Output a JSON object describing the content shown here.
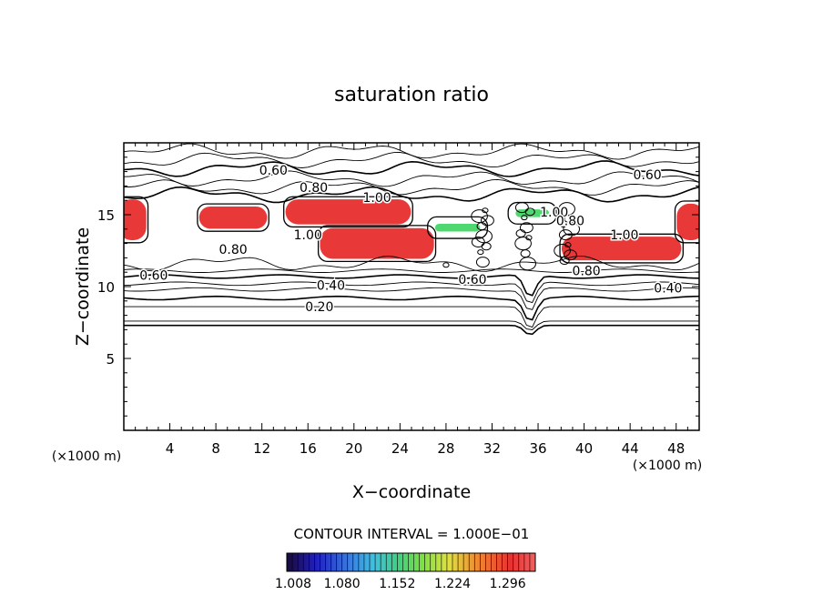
{
  "chart_data": {
    "type": "heatmap",
    "title": "saturation ratio",
    "xlabel": "X−coordinate",
    "ylabel": "Z−coordinate",
    "x_unit": "(×1000 m)",
    "z_unit": "(×1000 m)",
    "xlim": [
      0,
      50
    ],
    "ylim": [
      0,
      20
    ],
    "x_ticks": [
      "4",
      "8",
      "12",
      "16",
      "20",
      "24",
      "28",
      "32",
      "36",
      "40",
      "44",
      "48"
    ],
    "y_ticks": [
      "5",
      "10",
      "15"
    ],
    "contour_interval_text": "CONTOUR INTERVAL = 1.000E−01",
    "colorbar": {
      "range": [
        1.008,
        1.332
      ],
      "tick_labels": [
        "1.008",
        "1.080",
        "1.152",
        "1.224",
        "1.296"
      ],
      "colors": [
        "#1a0a3a",
        "#2020c0",
        "#3a7ae0",
        "#40c0e0",
        "#40d080",
        "#80e040",
        "#e0e040",
        "#f08030",
        "#e83030",
        "#f06060"
      ]
    },
    "contour_labels": [
      {
        "text": "0.60",
        "x": 13.0,
        "z": 18.1
      },
      {
        "text": "0.80",
        "x": 16.5,
        "z": 16.9
      },
      {
        "text": "1.00",
        "x": 22.0,
        "z": 16.2
      },
      {
        "text": "0.60",
        "x": 45.5,
        "z": 17.8
      },
      {
        "text": "1.00",
        "x": 16.0,
        "z": 13.6
      },
      {
        "text": "0.80",
        "x": 9.5,
        "z": 12.6
      },
      {
        "text": "0.60",
        "x": 2.6,
        "z": 10.8
      },
      {
        "text": "0.40",
        "x": 18.0,
        "z": 10.1
      },
      {
        "text": "0.20",
        "x": 17.0,
        "z": 8.6
      },
      {
        "text": "0.60",
        "x": 30.3,
        "z": 10.5
      },
      {
        "text": "0.80",
        "x": 40.2,
        "z": 11.1
      },
      {
        "text": "0.40",
        "x": 47.3,
        "z": 9.9
      },
      {
        "text": "1.00",
        "x": 43.5,
        "z": 13.6
      },
      {
        "text": "1.00",
        "x": 37.4,
        "z": 15.2
      },
      {
        "text": "0.80",
        "x": 38.8,
        "z": 14.6
      }
    ],
    "supersaturated_regions": [
      {
        "x": [
          0,
          1.5
        ],
        "z": [
          13.5,
          15.8
        ],
        "level": "high"
      },
      {
        "x": [
          7,
          12
        ],
        "z": [
          14.3,
          15.3
        ],
        "level": "high"
      },
      {
        "x": [
          14.5,
          24.5
        ],
        "z": [
          14.6,
          15.8
        ],
        "level": "high"
      },
      {
        "x": [
          17.5,
          26.5
        ],
        "z": [
          12.2,
          13.8
        ],
        "level": "high"
      },
      {
        "x": [
          38.5,
          48
        ],
        "z": [
          12.1,
          13.2
        ],
        "level": "high"
      },
      {
        "x": [
          48.5,
          50
        ],
        "z": [
          13.5,
          15.5
        ],
        "level": "high"
      },
      {
        "x": [
          27,
          31
        ],
        "z": [
          13.8,
          14.4
        ],
        "level": "medium"
      },
      {
        "x": [
          34,
          37
        ],
        "z": [
          14.8,
          15.4
        ],
        "level": "medium"
      }
    ]
  }
}
